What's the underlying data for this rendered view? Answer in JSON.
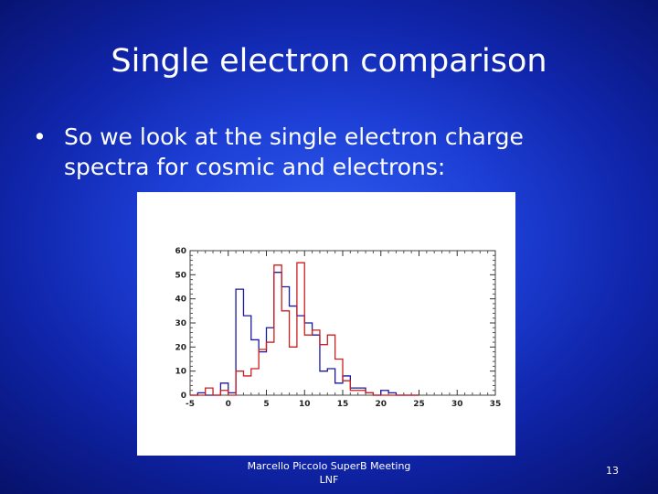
{
  "slide": {
    "title": "Single electron comparison",
    "bullet": "So we look at the single electron charge spectra for cosmic and electrons:",
    "bullet_mark": "•",
    "footer_line1": "Marcello Piccolo SuperB Meeting",
    "footer_line2": "LNF",
    "page_number": "13"
  },
  "chart_data": {
    "type": "histogram",
    "title": "",
    "xlabel": "",
    "ylabel": "",
    "xlim": [
      -5,
      35
    ],
    "ylim": [
      0,
      60
    ],
    "x_ticks": [
      "-5",
      "0",
      "5",
      "10",
      "15",
      "20",
      "25",
      "30",
      "35"
    ],
    "y_ticks": [
      "0",
      "10",
      "20",
      "30",
      "40",
      "50",
      "60"
    ],
    "bin_edges": [
      -5,
      -4,
      -3,
      -2,
      -1,
      0,
      1,
      2,
      3,
      4,
      5,
      6,
      7,
      8,
      9,
      10,
      11,
      12,
      13,
      14,
      15,
      16,
      17,
      18,
      19,
      20,
      21,
      22,
      23,
      24,
      25
    ],
    "series": [
      {
        "color": "#1a1a9c",
        "values": [
          0,
          1,
          0,
          0,
          5,
          1,
          44,
          33,
          23,
          18,
          28,
          51,
          45,
          37,
          33,
          30,
          25,
          10,
          11,
          5,
          8,
          3,
          3,
          1,
          0,
          2,
          1,
          0,
          0,
          0
        ]
      },
      {
        "color": "#cc1f1f",
        "values": [
          0,
          0,
          3,
          0,
          2,
          0,
          10,
          8,
          11,
          19,
          22,
          54,
          35,
          20,
          55,
          25,
          27,
          21,
          25,
          15,
          6,
          2,
          2,
          1,
          0,
          0,
          0,
          0,
          0,
          0
        ]
      }
    ]
  }
}
